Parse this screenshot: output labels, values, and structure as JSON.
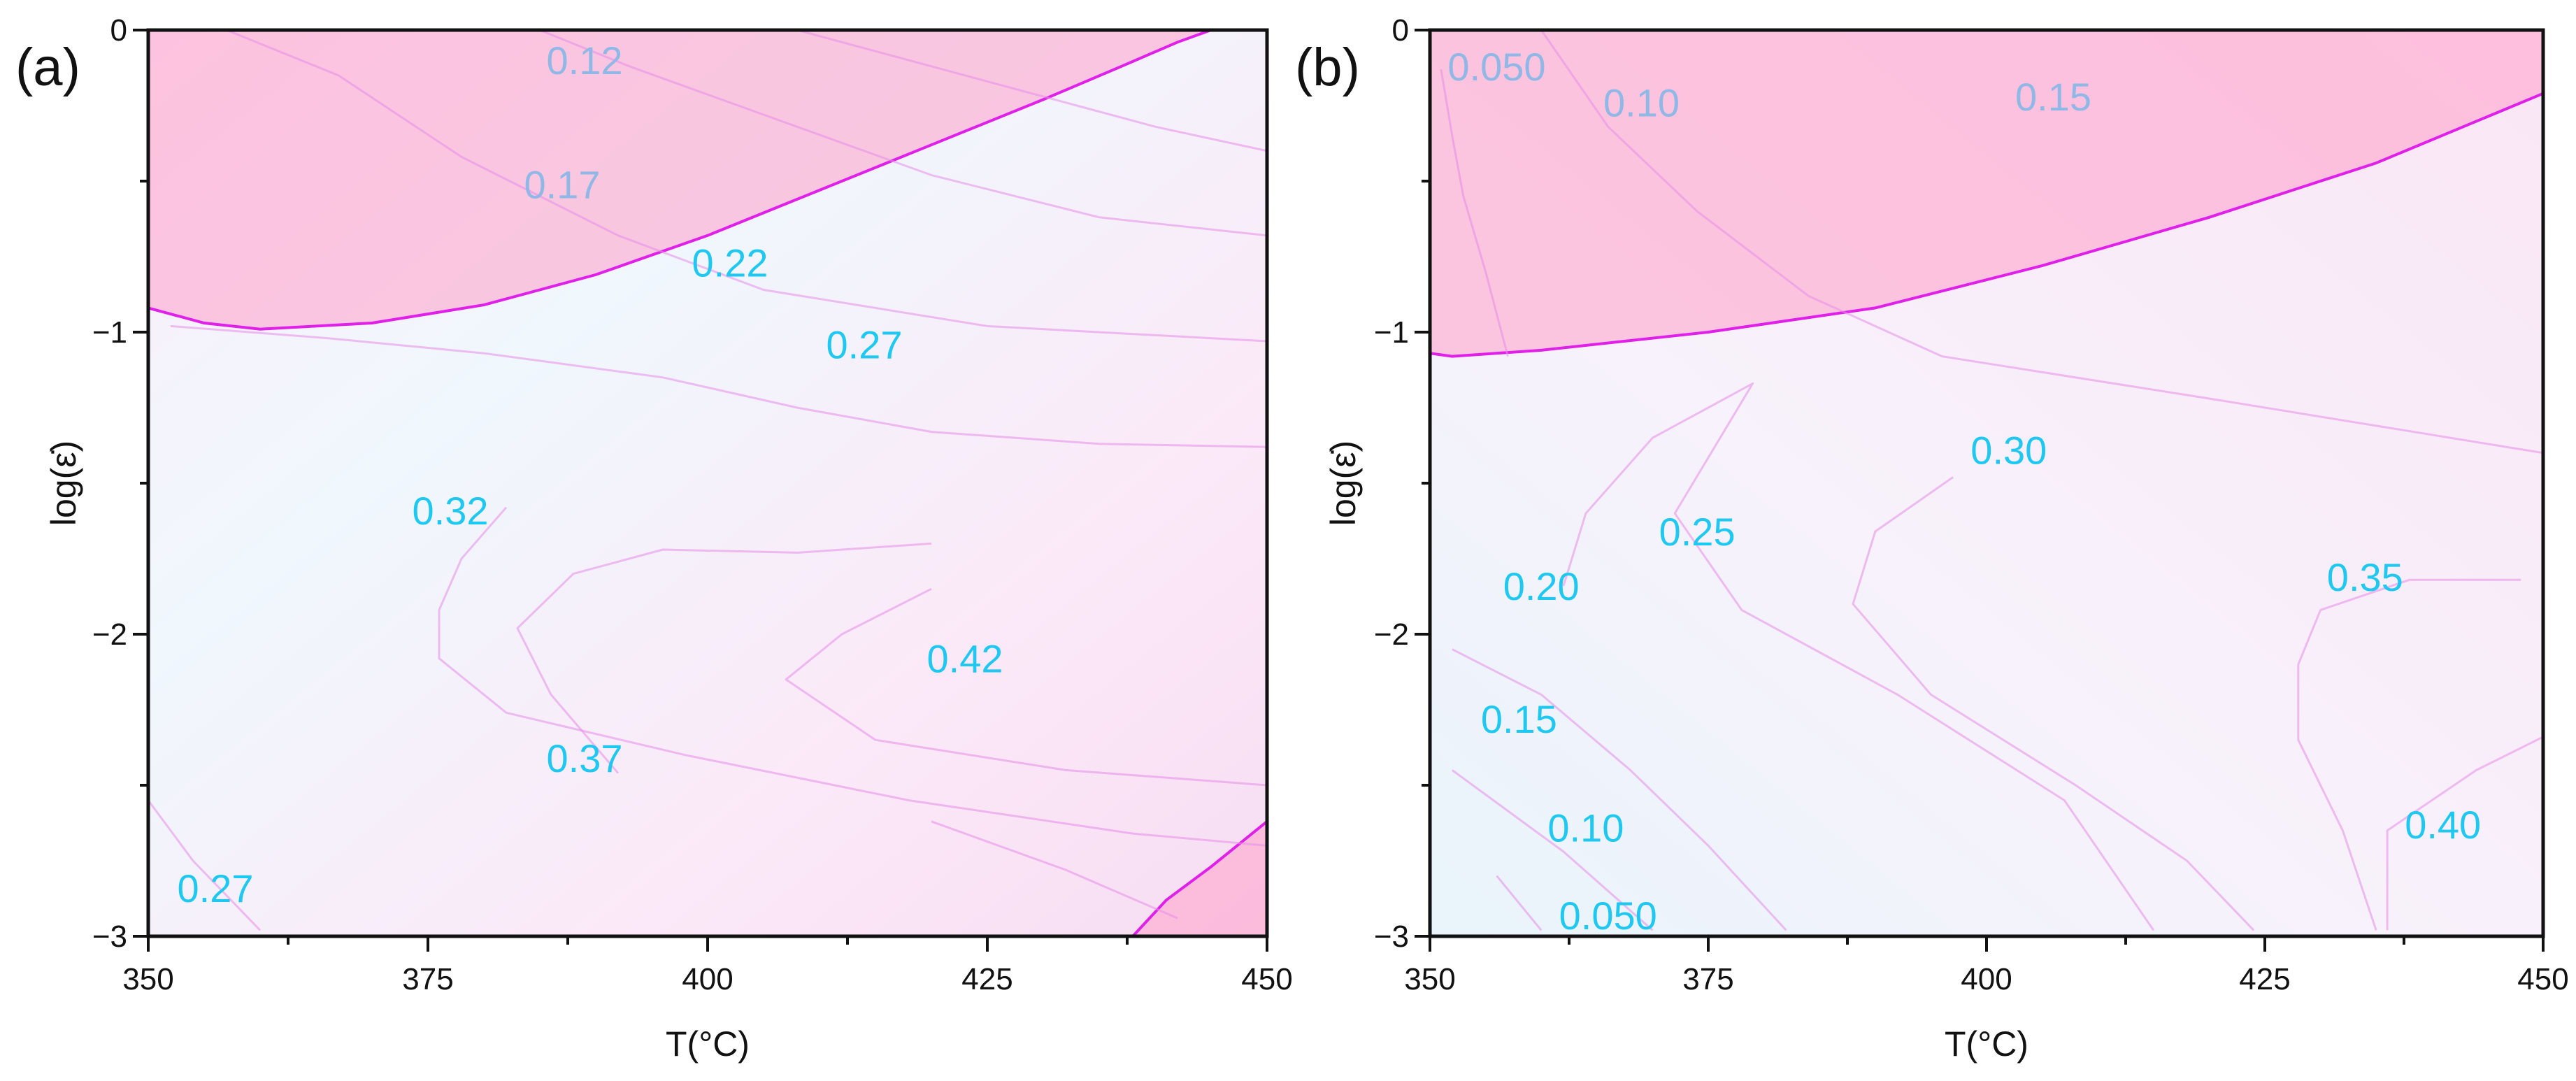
{
  "chart_data": [
    {
      "type": "contour",
      "panel_label": "(a)",
      "xlabel": "T(°C)",
      "ylabel": "log(ε̇)",
      "xlim": [
        350,
        450
      ],
      "ylim": [
        -3,
        0
      ],
      "x_ticks": [
        "350",
        "375",
        "400",
        "425",
        "450"
      ],
      "y_ticks": [
        "0",
        "−1",
        "−2",
        "−3"
      ],
      "colors": {
        "instability_fill": "#ff9ec9",
        "instability_edge": "#e01fe8",
        "label_high": "#1ec8f0",
        "label_low": "#8fb8e6",
        "contour_line": "#e58ce8"
      },
      "instability_regions": [
        {
          "name": "upper-left",
          "boundary": [
            [
              350,
              -0.92
            ],
            [
              355,
              -0.97
            ],
            [
              360,
              -0.99
            ],
            [
              370,
              -0.97
            ],
            [
              380,
              -0.91
            ],
            [
              390,
              -0.81
            ],
            [
              400,
              -0.68
            ],
            [
              410,
              -0.53
            ],
            [
              420,
              -0.38
            ],
            [
              430,
              -0.23
            ],
            [
              437,
              -0.12
            ],
            [
              442,
              -0.04
            ],
            [
              445,
              0
            ]
          ],
          "closed_to": "top-left corner"
        },
        {
          "name": "lower-right",
          "boundary": [
            [
              438,
              -3
            ],
            [
              441,
              -2.88
            ],
            [
              445,
              -2.77
            ],
            [
              450,
              -2.62
            ]
          ],
          "closed_to": "bottom-right corner"
        }
      ],
      "contour_labels": [
        {
          "text": "0.12",
          "x": 389,
          "y": -0.1,
          "tone": "low"
        },
        {
          "text": "0.17",
          "x": 387,
          "y": -0.51,
          "tone": "low"
        },
        {
          "text": "0.22",
          "x": 402,
          "y": -0.77,
          "tone": "high"
        },
        {
          "text": "0.27",
          "x": 414,
          "y": -1.04,
          "tone": "high"
        },
        {
          "text": "0.32",
          "x": 377,
          "y": -1.59,
          "tone": "high"
        },
        {
          "text": "0.42",
          "x": 423,
          "y": -2.08,
          "tone": "high"
        },
        {
          "text": "0.37",
          "x": 389,
          "y": -2.41,
          "tone": "high"
        },
        {
          "text": "0.27",
          "x": 356,
          "y": -2.84,
          "tone": "high"
        }
      ],
      "contours": [
        [
          [
            357,
            0
          ],
          [
            367,
            -0.15
          ],
          [
            378,
            -0.42
          ],
          [
            392,
            -0.68
          ],
          [
            405,
            -0.86
          ],
          [
            425,
            -0.98
          ],
          [
            450,
            -1.03
          ]
        ],
        [
          [
            385,
            0
          ],
          [
            393,
            -0.12
          ],
          [
            405,
            -0.28
          ],
          [
            420,
            -0.48
          ],
          [
            435,
            -0.62
          ],
          [
            450,
            -0.68
          ]
        ],
        [
          [
            408,
            0
          ],
          [
            418,
            -0.1
          ],
          [
            428,
            -0.2
          ],
          [
            440,
            -0.32
          ],
          [
            450,
            -0.4
          ]
        ],
        [
          [
            352,
            -0.98
          ],
          [
            366,
            -1.02
          ],
          [
            380,
            -1.07
          ],
          [
            396,
            -1.15
          ],
          [
            408,
            -1.25
          ],
          [
            420,
            -1.33
          ],
          [
            435,
            -1.37
          ],
          [
            450,
            -1.38
          ]
        ],
        [
          [
            382,
            -1.58
          ],
          [
            378,
            -1.75
          ],
          [
            376,
            -1.92
          ],
          [
            376,
            -2.08
          ],
          [
            382,
            -2.26
          ],
          [
            398,
            -2.4
          ],
          [
            418,
            -2.55
          ],
          [
            438,
            -2.66
          ],
          [
            450,
            -2.7
          ]
        ],
        [
          [
            420,
            -1.85
          ],
          [
            412,
            -2
          ],
          [
            407,
            -2.15
          ],
          [
            415,
            -2.35
          ],
          [
            432,
            -2.45
          ],
          [
            450,
            -2.5
          ]
        ],
        [
          [
            392,
            -2.46
          ],
          [
            386,
            -2.2
          ],
          [
            383,
            -1.98
          ],
          [
            388,
            -1.8
          ],
          [
            396,
            -1.72
          ],
          [
            408,
            -1.73
          ],
          [
            420,
            -1.7
          ]
        ],
        [
          [
            350,
            -2.55
          ],
          [
            354,
            -2.75
          ],
          [
            360,
            -2.98
          ]
        ],
        [
          [
            420,
            -2.62
          ],
          [
            432,
            -2.78
          ],
          [
            442,
            -2.94
          ]
        ]
      ]
    },
    {
      "type": "contour",
      "panel_label": "(b)",
      "xlabel": "T(°C)",
      "ylabel": "log(ε̇)",
      "xlim": [
        350,
        450
      ],
      "ylim": [
        -3,
        0
      ],
      "x_ticks": [
        "350",
        "375",
        "400",
        "425",
        "450"
      ],
      "y_ticks": [
        "0",
        "−1",
        "−2",
        "−3"
      ],
      "colors": {
        "instability_fill": "#ff9ec9",
        "instability_edge": "#e01fe8",
        "label_high": "#1ec8f0",
        "label_low": "#8fb8e6",
        "contour_line": "#e58ce8"
      },
      "instability_regions": [
        {
          "name": "upper",
          "boundary": [
            [
              350,
              -1.07
            ],
            [
              352,
              -1.08
            ],
            [
              360,
              -1.06
            ],
            [
              375,
              -1
            ],
            [
              390,
              -0.92
            ],
            [
              405,
              -0.78
            ],
            [
              420,
              -0.62
            ],
            [
              435,
              -0.44
            ],
            [
              450,
              -0.21
            ]
          ],
          "closed_to": "top edge"
        }
      ],
      "contour_labels": [
        {
          "text": "0.050",
          "x": 356,
          "y": -0.12,
          "tone": "low"
        },
        {
          "text": "0.10",
          "x": 369,
          "y": -0.24,
          "tone": "low"
        },
        {
          "text": "0.15",
          "x": 406,
          "y": -0.22,
          "tone": "low"
        },
        {
          "text": "0.30",
          "x": 402,
          "y": -1.39,
          "tone": "high"
        },
        {
          "text": "0.25",
          "x": 374,
          "y": -1.66,
          "tone": "high"
        },
        {
          "text": "0.20",
          "x": 360,
          "y": -1.84,
          "tone": "high"
        },
        {
          "text": "0.35",
          "x": 434,
          "y": -1.81,
          "tone": "high"
        },
        {
          "text": "0.15",
          "x": 358,
          "y": -2.28,
          "tone": "high"
        },
        {
          "text": "0.40",
          "x": 441,
          "y": -2.63,
          "tone": "high"
        },
        {
          "text": "0.10",
          "x": 364,
          "y": -2.64,
          "tone": "high"
        },
        {
          "text": "0.050",
          "x": 366,
          "y": -2.93,
          "tone": "high"
        }
      ],
      "contours": [
        [
          [
            351,
            -0.13
          ],
          [
            352,
            -0.35
          ],
          [
            353,
            -0.55
          ],
          [
            355,
            -0.8
          ],
          [
            357,
            -1.08
          ]
        ],
        [
          [
            360,
            0
          ],
          [
            366,
            -0.32
          ],
          [
            374,
            -0.6
          ],
          [
            384,
            -0.88
          ],
          [
            396,
            -1.08
          ],
          [
            420,
            -1.22
          ],
          [
            450,
            -1.4
          ]
        ],
        [
          [
            362,
            -1.84
          ],
          [
            364,
            -1.6
          ],
          [
            370,
            -1.35
          ],
          [
            379,
            -1.17
          ],
          [
            372,
            -1.6
          ],
          [
            378,
            -1.92
          ],
          [
            392,
            -2.2
          ],
          [
            407,
            -2.55
          ],
          [
            415,
            -2.98
          ]
        ],
        [
          [
            352,
            -2.05
          ],
          [
            360,
            -2.2
          ],
          [
            368,
            -2.45
          ],
          [
            375,
            -2.7
          ],
          [
            382,
            -2.98
          ]
        ],
        [
          [
            352,
            -2.45
          ],
          [
            362,
            -2.72
          ],
          [
            370,
            -2.98
          ]
        ],
        [
          [
            356,
            -2.8
          ],
          [
            360,
            -2.98
          ]
        ],
        [
          [
            397,
            -1.48
          ],
          [
            390,
            -1.66
          ],
          [
            388,
            -1.9
          ],
          [
            395,
            -2.2
          ],
          [
            408,
            -2.5
          ],
          [
            418,
            -2.75
          ],
          [
            424,
            -2.98
          ]
        ],
        [
          [
            448,
            -1.82
          ],
          [
            438,
            -1.82
          ],
          [
            430,
            -1.92
          ],
          [
            428,
            -2.1
          ],
          [
            428,
            -2.35
          ],
          [
            432,
            -2.65
          ],
          [
            435,
            -2.98
          ]
        ],
        [
          [
            450,
            -2.34
          ],
          [
            444,
            -2.45
          ],
          [
            436,
            -2.65
          ],
          [
            436,
            -2.98
          ]
        ]
      ]
    }
  ]
}
